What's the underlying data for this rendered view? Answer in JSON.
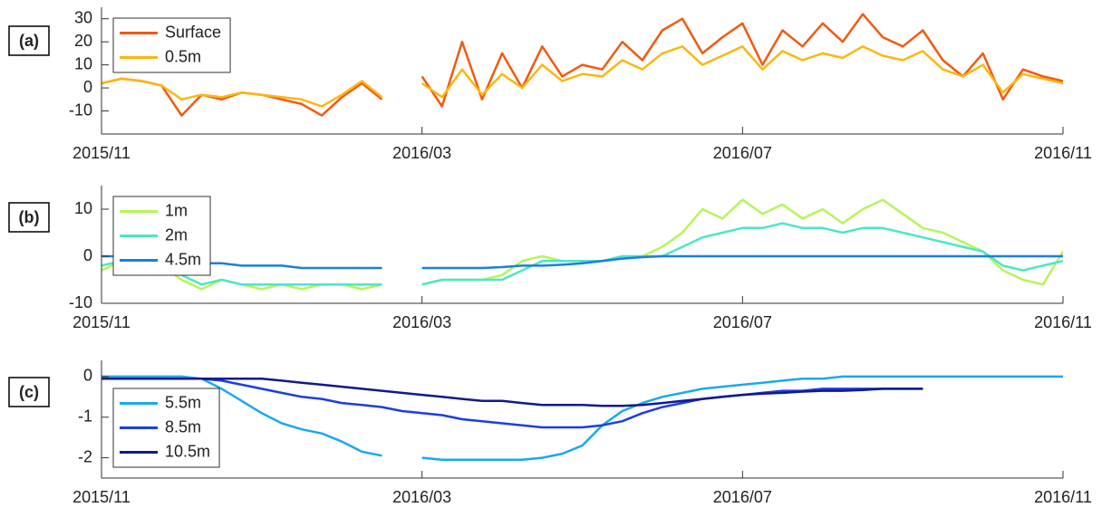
{
  "chart_data": [
    {
      "type": "line",
      "label": "(a)",
      "legend": "upper left",
      "x": [
        0,
        0.25,
        0.5,
        0.75,
        1,
        1.25,
        1.5,
        1.75,
        2,
        2.25,
        2.5,
        2.75,
        3,
        3.25,
        3.5,
        3.75,
        4,
        4.25,
        4.5,
        4.75,
        5,
        5.25,
        5.5,
        5.75,
        6,
        6.25,
        6.5,
        6.75,
        7,
        7.25,
        7.5,
        7.75,
        8,
        8.25,
        8.5,
        8.75,
        9,
        9.25,
        9.5,
        9.75,
        10,
        10.25,
        10.5,
        10.75,
        11,
        11.25,
        11.5,
        11.75,
        12
      ],
      "xlim": [
        0,
        12
      ],
      "xticks": [
        {
          "value": 0,
          "label": "2015/11"
        },
        {
          "value": 4,
          "label": "2016/03"
        },
        {
          "value": 8,
          "label": "2016/07"
        },
        {
          "value": 12,
          "label": "2016/11"
        }
      ],
      "ylim": [
        -20,
        35
      ],
      "yticks": [
        -10,
        0,
        10,
        20,
        30
      ],
      "series": [
        {
          "name": "Surface",
          "color": "#f25a10",
          "values": [
            2,
            4,
            3,
            1,
            -12,
            -3,
            -5,
            -2,
            -3,
            -5,
            -7,
            -12,
            -4,
            2,
            -5,
            null,
            5,
            -8,
            20,
            -5,
            15,
            0,
            18,
            5,
            10,
            8,
            20,
            12,
            25,
            30,
            15,
            22,
            28,
            10,
            25,
            18,
            28,
            20,
            32,
            22,
            18,
            25,
            12,
            5,
            15,
            -5,
            8,
            5,
            3
          ]
        },
        {
          "name": "0.5m",
          "color": "#fbb712",
          "values": [
            2,
            4,
            3,
            1,
            -5,
            -3,
            -4,
            -2,
            -3,
            -4,
            -5,
            -8,
            -3,
            3,
            -4,
            null,
            2,
            -4,
            8,
            -3,
            6,
            0,
            10,
            3,
            6,
            5,
            12,
            8,
            15,
            18,
            10,
            14,
            18,
            8,
            16,
            12,
            15,
            13,
            18,
            14,
            12,
            16,
            8,
            5,
            10,
            -2,
            6,
            4,
            2
          ]
        }
      ]
    },
    {
      "type": "line",
      "label": "(b)",
      "legend": "upper left",
      "x": [
        0,
        0.25,
        0.5,
        0.75,
        1,
        1.25,
        1.5,
        1.75,
        2,
        2.25,
        2.5,
        2.75,
        3,
        3.25,
        3.5,
        3.75,
        4,
        4.25,
        4.5,
        4.75,
        5,
        5.25,
        5.5,
        5.75,
        6,
        6.25,
        6.5,
        6.75,
        7,
        7.25,
        7.5,
        7.75,
        8,
        8.25,
        8.5,
        8.75,
        9,
        9.25,
        9.5,
        9.75,
        10,
        10.25,
        10.5,
        10.75,
        11,
        11.25,
        11.5,
        11.75,
        12
      ],
      "xlim": [
        0,
        12
      ],
      "xticks": [
        {
          "value": 0,
          "label": "2015/11"
        },
        {
          "value": 4,
          "label": "2016/03"
        },
        {
          "value": 8,
          "label": "2016/07"
        },
        {
          "value": 12,
          "label": "2016/11"
        }
      ],
      "ylim": [
        -10,
        15
      ],
      "yticks": [
        -10,
        0,
        10
      ],
      "series": [
        {
          "name": "1m",
          "color": "#b6f55a",
          "values": [
            -3,
            -1,
            -3,
            -2,
            -5,
            -7,
            -5,
            -6,
            -7,
            -6,
            -7,
            -6,
            -6,
            -7,
            -6,
            null,
            -6,
            -5,
            -5,
            -5,
            -4,
            -1,
            0,
            -1,
            -1,
            -1,
            0,
            0,
            2,
            5,
            10,
            8,
            12,
            9,
            11,
            8,
            10,
            7,
            10,
            12,
            9,
            6,
            5,
            3,
            1,
            -3,
            -5,
            -6,
            1
          ]
        },
        {
          "name": "2m",
          "color": "#4de6c8",
          "values": [
            -2,
            -1,
            -2,
            -2,
            -4,
            -6,
            -5,
            -6,
            -6,
            -6,
            -6,
            -6,
            -6,
            -6,
            -6,
            null,
            -6,
            -5,
            -5,
            -5,
            -5,
            -3,
            -1,
            -1,
            -1,
            -1,
            0,
            0,
            0,
            2,
            4,
            5,
            6,
            6,
            7,
            6,
            6,
            5,
            6,
            6,
            5,
            4,
            3,
            2,
            1,
            -2,
            -3,
            -2,
            -1
          ]
        },
        {
          "name": "4.5m",
          "color": "#1a7fe0",
          "values": [
            0,
            0,
            0,
            -1,
            -1,
            -1.5,
            -1.5,
            -2,
            -2,
            -2,
            -2.5,
            -2.5,
            -2.5,
            -2.5,
            -2.5,
            null,
            -2.5,
            -2.5,
            -2.5,
            -2.5,
            -2.3,
            -2,
            -2,
            -1.8,
            -1.5,
            -1,
            -0.5,
            -0.2,
            0,
            0,
            0,
            0,
            0,
            0,
            0,
            0,
            0,
            0,
            0,
            0,
            0,
            0,
            0,
            0,
            0,
            0,
            0,
            0,
            0
          ]
        }
      ]
    },
    {
      "type": "line",
      "label": "(c)",
      "legend": "lower left",
      "x": [
        0,
        0.25,
        0.5,
        0.75,
        1,
        1.25,
        1.5,
        1.75,
        2,
        2.25,
        2.5,
        2.75,
        3,
        3.25,
        3.5,
        3.75,
        4,
        4.25,
        4.5,
        4.75,
        5,
        5.25,
        5.5,
        5.75,
        6,
        6.25,
        6.5,
        6.75,
        7,
        7.25,
        7.5,
        7.75,
        8,
        8.25,
        8.5,
        8.75,
        9,
        9.25,
        9.5,
        9.75,
        10,
        10.25,
        10.5,
        10.75,
        11,
        11.25,
        11.5,
        11.75,
        12
      ],
      "xlim": [
        0,
        12
      ],
      "xticks": [
        {
          "value": 0,
          "label": "2015/11"
        },
        {
          "value": 4,
          "label": "2016/03"
        },
        {
          "value": 8,
          "label": "2016/07"
        },
        {
          "value": 12,
          "label": "2016/11"
        }
      ],
      "ylim": [
        -2.5,
        0.4
      ],
      "yticks": [
        -2,
        -1,
        0
      ],
      "series": [
        {
          "name": "5.5m",
          "color": "#1aa8f0",
          "values": [
            0,
            0,
            0,
            0,
            0,
            -0.05,
            -0.3,
            -0.6,
            -0.9,
            -1.15,
            -1.3,
            -1.4,
            -1.6,
            -1.85,
            -1.95,
            null,
            -2,
            -2.05,
            -2.05,
            -2.05,
            -2.05,
            -2.05,
            -2,
            -1.9,
            -1.7,
            -1.2,
            -0.85,
            -0.65,
            -0.5,
            -0.4,
            -0.3,
            -0.25,
            -0.2,
            -0.15,
            -0.1,
            -0.05,
            -0.05,
            0,
            0,
            0,
            0,
            0,
            0,
            0,
            0,
            0,
            0,
            0,
            0
          ]
        },
        {
          "name": "8.5m",
          "color": "#1a3ee6",
          "values": [
            -0.05,
            -0.05,
            -0.05,
            -0.05,
            -0.05,
            -0.05,
            -0.1,
            -0.2,
            -0.3,
            -0.4,
            -0.5,
            -0.55,
            -0.65,
            -0.7,
            -0.75,
            -0.85,
            -0.9,
            -0.95,
            -1.05,
            -1.1,
            -1.15,
            -1.2,
            -1.25,
            -1.25,
            -1.25,
            -1.2,
            -1.1,
            -0.9,
            -0.75,
            -0.65,
            -0.55,
            -0.5,
            -0.45,
            -0.4,
            -0.35,
            -0.35,
            -0.3,
            -0.3,
            -0.3,
            -0.3,
            -0.3,
            -0.3,
            null,
            null,
            null,
            null,
            null,
            null,
            null
          ]
        },
        {
          "name": "10.5m",
          "color": "#101a8c",
          "values": [
            -0.05,
            -0.05,
            -0.05,
            -0.05,
            -0.05,
            -0.05,
            -0.05,
            -0.05,
            -0.05,
            -0.1,
            -0.15,
            -0.2,
            -0.25,
            -0.3,
            -0.35,
            -0.4,
            -0.45,
            -0.5,
            -0.55,
            -0.6,
            -0.6,
            -0.65,
            -0.7,
            -0.7,
            -0.7,
            -0.72,
            -0.72,
            -0.7,
            -0.65,
            -0.6,
            -0.55,
            -0.5,
            -0.45,
            -0.42,
            -0.4,
            -0.37,
            -0.35,
            -0.35,
            -0.33,
            -0.3,
            -0.3,
            -0.3,
            null,
            null,
            null,
            null,
            null,
            null,
            null
          ]
        }
      ]
    }
  ]
}
